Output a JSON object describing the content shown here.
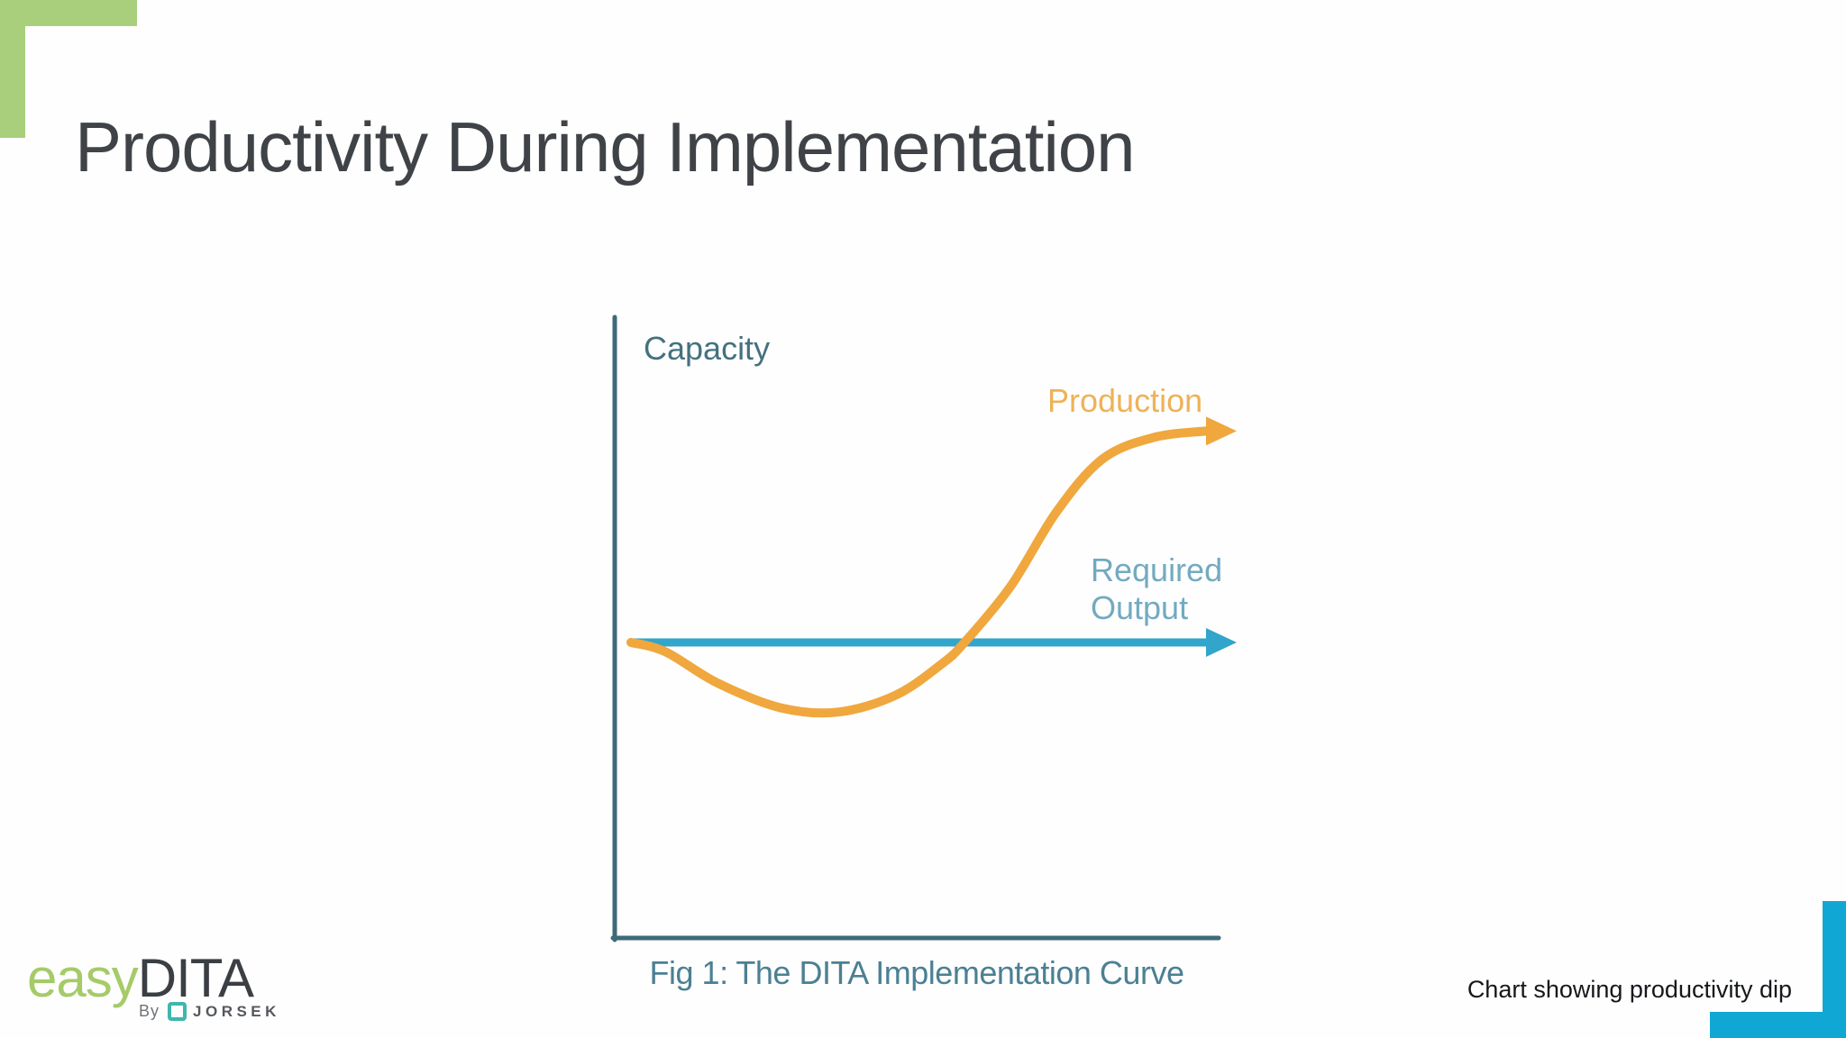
{
  "slide": {
    "title": "Productivity During Implementation",
    "footnote": "Chart showing productivity dip"
  },
  "logo": {
    "brand_easy": "easy",
    "brand_dita": "DITA",
    "byline_by": "By",
    "byline_company": "JORSEK",
    "icon": "jorsek-square-icon"
  },
  "colors": {
    "brand_green": "#a9ce7c",
    "accent_cyan": "#11a7d4",
    "title_text": "#3f4347",
    "footnote_text": "#15181b"
  },
  "chart_data": {
    "type": "line",
    "title": "Fig 1: The DITA Implementation Curve",
    "ylabel": "Capacity",
    "xlabel": "",
    "axis_color": "#3e6b77",
    "grid": false,
    "legend_position": "inline-labels",
    "x_range": [
      0,
      100
    ],
    "y_units": "relative capacity (required output = 0)",
    "series": [
      {
        "name": "Production",
        "color": "#f0a73e",
        "label_color": "#eeb257",
        "arrow": true,
        "x": [
          0,
          6,
          15,
          26,
          36,
          46,
          54,
          58,
          66,
          74,
          82,
          91,
          100
        ],
        "y": [
          0,
          -1.5,
          -6.5,
          -10.5,
          -11.2,
          -8.5,
          -3.5,
          0,
          9,
          21,
          29.5,
          33,
          34
        ],
        "description": "Production dips below required output during implementation, then rises well above it"
      },
      {
        "name": "Required Output",
        "color": "#31a5cb",
        "label_color": "#72aac0",
        "arrow": true,
        "x": [
          0,
          100
        ],
        "y": [
          0,
          0
        ],
        "description": "Constant required output baseline"
      }
    ]
  }
}
